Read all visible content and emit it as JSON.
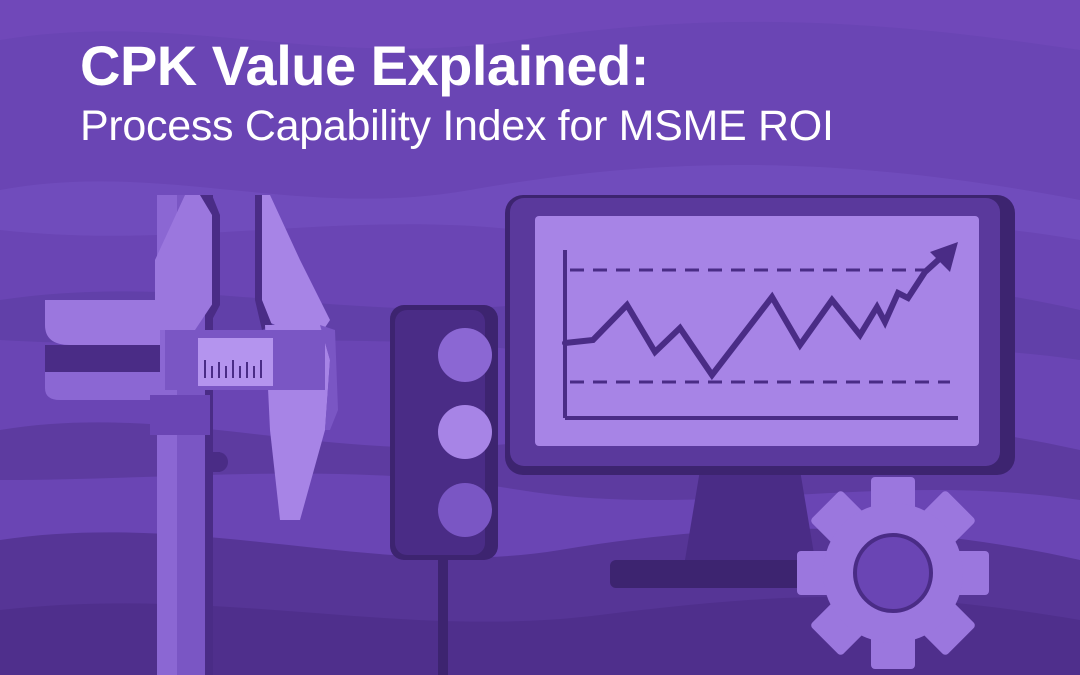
{
  "header": {
    "title": "CPK Value Explained:",
    "subtitle": "Process Capability Index for MSME ROI"
  },
  "illustration": {
    "items": [
      "caliper-icon",
      "traffic-light-icon",
      "monitor-icon",
      "trend-chart-icon",
      "gear-icon"
    ]
  },
  "colors": {
    "background": "#6a45b4",
    "wave_dark": "#5a399c",
    "wave_mid": "#7450bf",
    "object_light": "#9b77de",
    "object_mid": "#7a56c4",
    "object_dark": "#4a2c86",
    "screen": "#a784e6",
    "text": "#ffffff"
  }
}
